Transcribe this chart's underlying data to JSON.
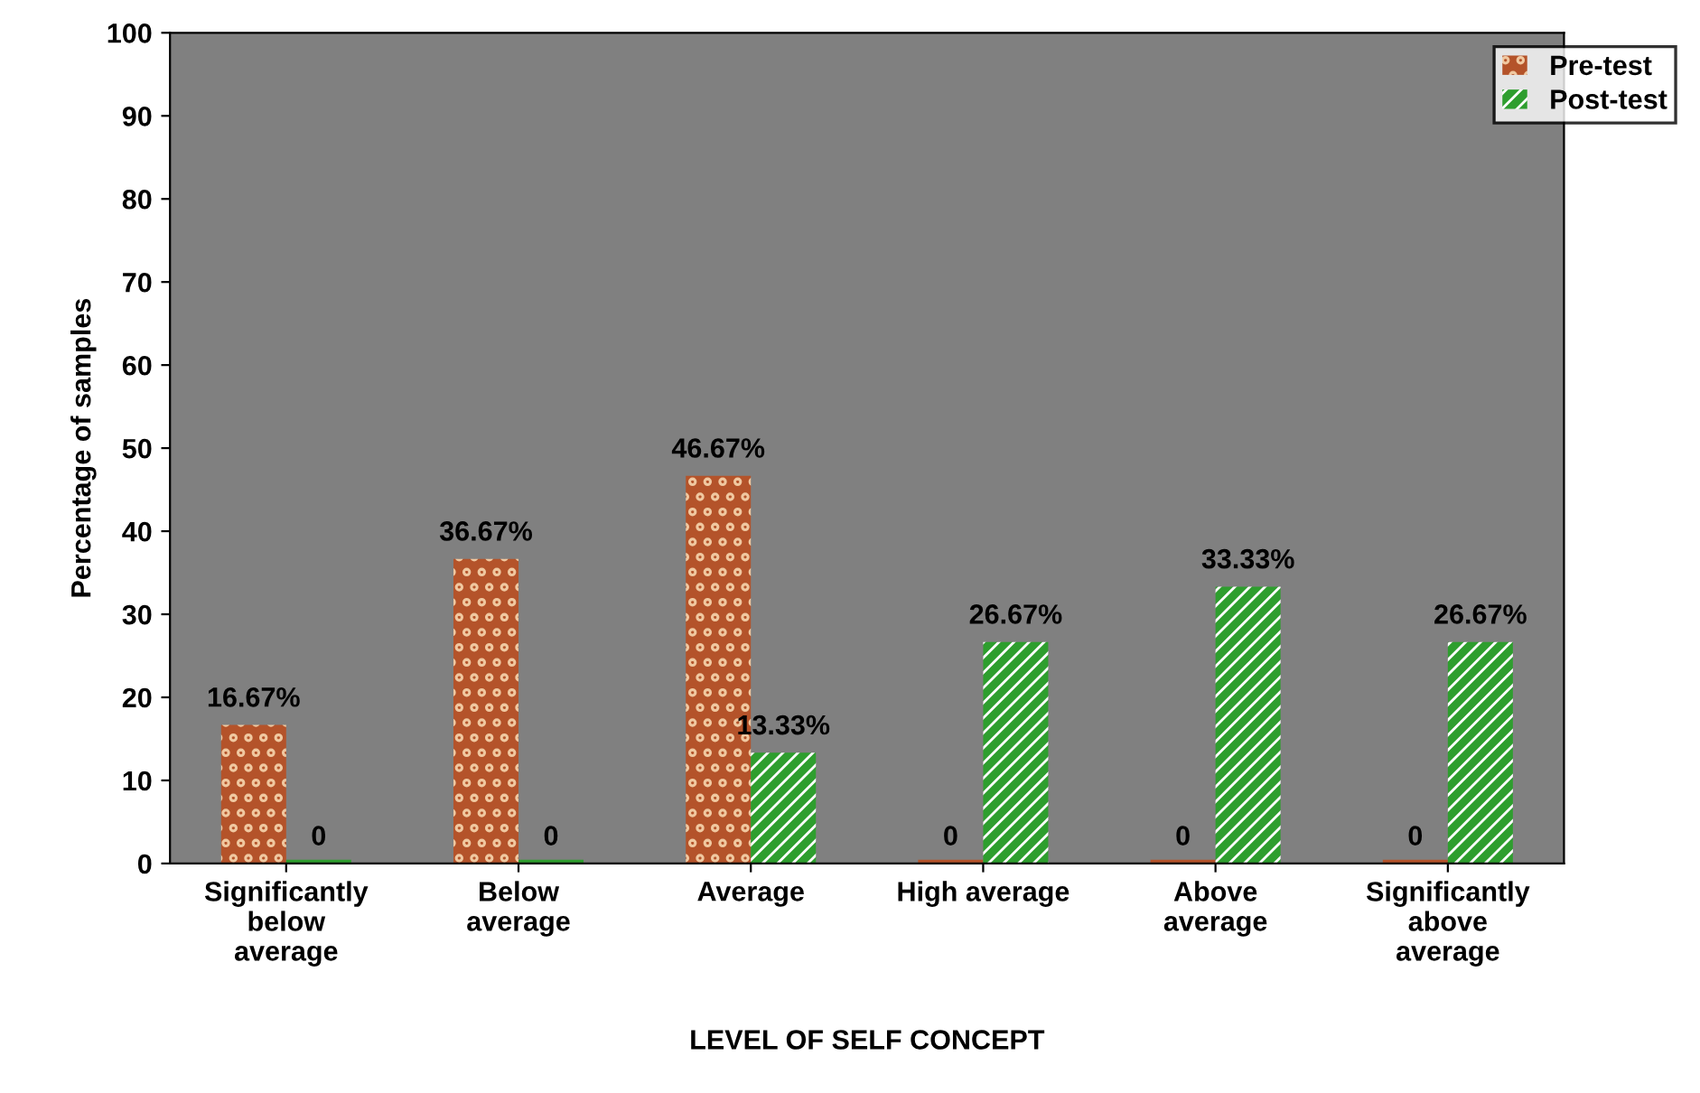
{
  "chart_data": {
    "type": "bar",
    "xlabel": "LEVEL OF SELF CONCEPT",
    "ylabel": "Percentage of samples",
    "categories": [
      "Significantly\nbelow\naverage",
      "Below\naverage",
      "Average",
      "High average",
      "Above\naverage",
      "Significantly\nabove\naverage"
    ],
    "series": [
      {
        "name": "Pre-test",
        "color": "#b4532a",
        "values": [
          16.67,
          36.67,
          46.67,
          0,
          0,
          0
        ],
        "value_labels": [
          "16.67%",
          "36.67%",
          "46.67%",
          "0",
          "0",
          "0"
        ]
      },
      {
        "name": "Post-test",
        "color": "#2e9e2e",
        "values": [
          0,
          0,
          13.33,
          26.67,
          33.33,
          26.67
        ],
        "value_labels": [
          "0",
          "0",
          "13.33%",
          "26.67%",
          "33.33%",
          "26.67%"
        ]
      }
    ],
    "ylim": [
      0,
      100
    ],
    "yticks": [
      0,
      10,
      20,
      30,
      40,
      50,
      60,
      70,
      80,
      90,
      100
    ],
    "grid": false,
    "legend": "top right"
  }
}
